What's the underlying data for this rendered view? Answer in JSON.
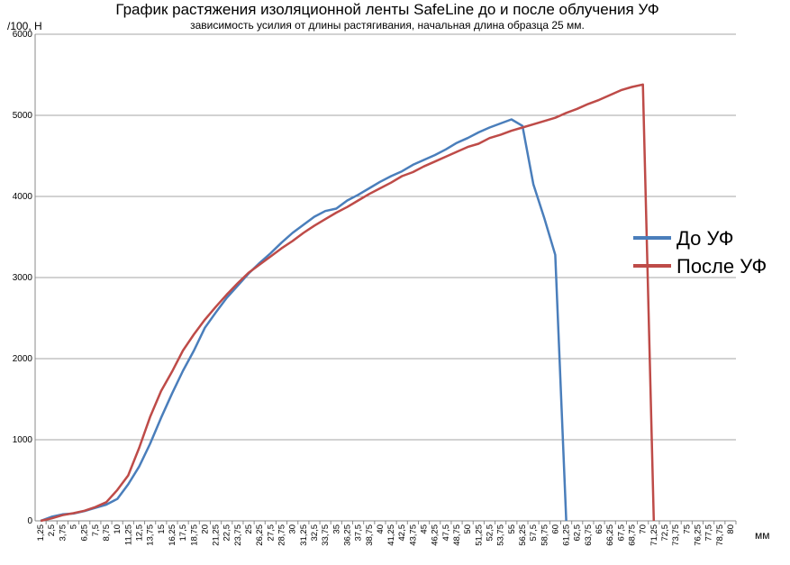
{
  "chart_data": {
    "type": "line",
    "title": "График растяжения изоляционной ленты SafeLine до и после облучения УФ",
    "subtitle": "зависимость усилия от длины растягивания, начальная длина образца 25 мм.",
    "ylabel": "/100, Н",
    "xlabel": "мм",
    "ylim": [
      0,
      6000
    ],
    "yticks": [
      "0",
      "1000",
      "2000",
      "3000",
      "4000",
      "5000",
      "6000"
    ],
    "grid": true,
    "legend_position": "right",
    "categories": [
      "1,25",
      "2,5",
      "3,75",
      "5",
      "6,25",
      "7,5",
      "8,75",
      "10",
      "11,25",
      "12,5",
      "13,75",
      "15",
      "16,25",
      "17,5",
      "18,75",
      "20",
      "21,25",
      "22,5",
      "23,75",
      "25",
      "26,25",
      "27,5",
      "28,75",
      "30",
      "31,25",
      "32,5",
      "33,75",
      "35",
      "36,25",
      "37,5",
      "38,75",
      "40",
      "41,25",
      "42,5",
      "43,75",
      "45",
      "46,25",
      "47,5",
      "48,75",
      "50",
      "51,25",
      "52,5",
      "53,75",
      "55",
      "56,25",
      "57,5",
      "58,75",
      "60",
      "61,25",
      "62,5",
      "63,75",
      "65",
      "66,25",
      "67,5",
      "68,75",
      "70",
      "71,25",
      "72,5",
      "73,75",
      "75",
      "76,25",
      "77,5",
      "78,75",
      "80"
    ],
    "series": [
      {
        "name": "До УФ",
        "color": "#4a7ebb",
        "values": [
          0,
          50,
          80,
          90,
          120,
          160,
          200,
          270,
          450,
          670,
          950,
          1270,
          1570,
          1850,
          2100,
          2380,
          2570,
          2750,
          2900,
          3050,
          3180,
          3300,
          3430,
          3550,
          3650,
          3750,
          3820,
          3850,
          3950,
          4020,
          4100,
          4180,
          4250,
          4310,
          4390,
          4450,
          4510,
          4580,
          4660,
          4720,
          4790,
          4850,
          4900,
          4950,
          4870,
          4150,
          3730,
          3280,
          0,
          null,
          null,
          null,
          null,
          null,
          null,
          null,
          null,
          null,
          null,
          null,
          null,
          null,
          null,
          null
        ]
      },
      {
        "name": "После УФ",
        "color": "#be4b48",
        "values": [
          0,
          30,
          70,
          95,
          125,
          170,
          230,
          380,
          560,
          900,
          1280,
          1600,
          1840,
          2100,
          2300,
          2480,
          2640,
          2790,
          2930,
          3060,
          3160,
          3260,
          3360,
          3450,
          3550,
          3640,
          3720,
          3800,
          3870,
          3950,
          4030,
          4100,
          4170,
          4250,
          4300,
          4370,
          4430,
          4490,
          4550,
          4610,
          4650,
          4720,
          4760,
          4810,
          4850,
          4890,
          4930,
          4970,
          5030,
          5080,
          5140,
          5190,
          5250,
          5310,
          5350,
          5380,
          0,
          null,
          null,
          null,
          null,
          null,
          null,
          null
        ]
      }
    ]
  }
}
